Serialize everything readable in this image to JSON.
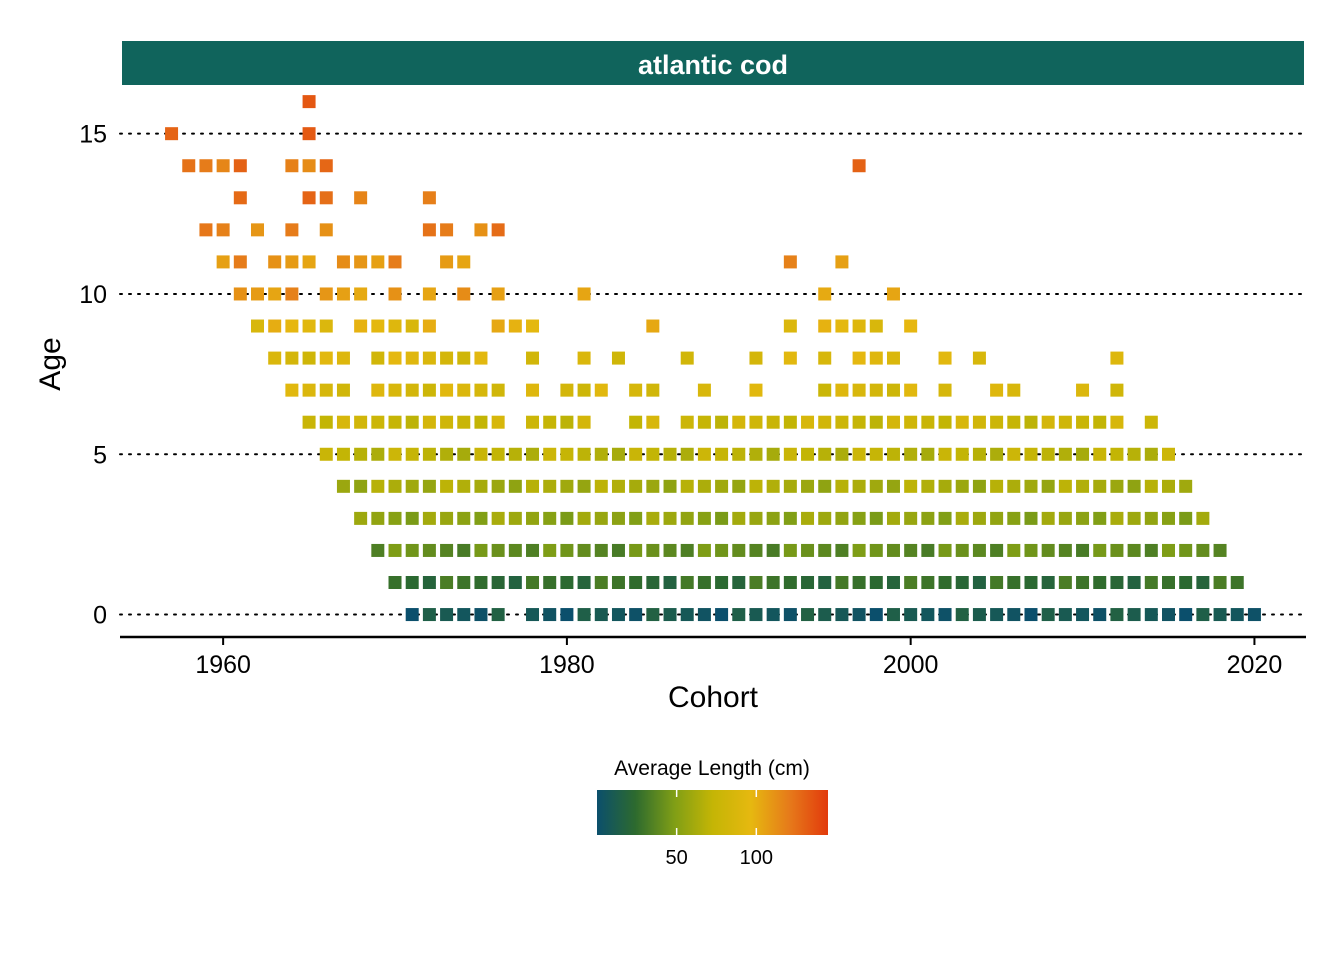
{
  "chart_data": {
    "type": "heatmap",
    "panel_title": "atlantic cod",
    "xlabel": "Cohort",
    "ylabel": "Age",
    "xlim": [
      1954,
      2023
    ],
    "ylim": [
      -0.7,
      16.3
    ],
    "x_ticks": [
      1960,
      1980,
      2000,
      2020
    ],
    "y_ticks": [
      0,
      5,
      10,
      15
    ],
    "grid": "horizontal dotted lines at y ticks",
    "legend": {
      "title": "Average Length (cm)",
      "position": "bottom",
      "range": [
        0,
        145
      ],
      "ticks": [
        50,
        100
      ],
      "colors": [
        "#0b4f6c",
        "#2d6a2e",
        "#7f9e16",
        "#c4b505",
        "#e6b810",
        "#e67a1a",
        "#e23a0c"
      ]
    },
    "colors": {
      "strip": "#10645c"
    },
    "rows": [
      {
        "age": 0,
        "cohorts": [
          [
            1971,
            1976
          ],
          [
            1978,
            2020
          ]
        ],
        "length": 8
      },
      {
        "age": 1,
        "cohorts": [
          [
            1970,
            2019
          ]
        ],
        "length": 25
      },
      {
        "age": 2,
        "cohorts": [
          [
            1969,
            2018
          ]
        ],
        "length": 40
      },
      {
        "age": 3,
        "cohorts": [
          [
            1968,
            2017
          ]
        ],
        "length": 55
      },
      {
        "age": 4,
        "cohorts": [
          [
            1967,
            2016
          ]
        ],
        "length": 62
      },
      {
        "age": 5,
        "cohorts": [
          [
            1966,
            2015
          ]
        ],
        "length": 70
      },
      {
        "age": 6,
        "cohorts": [
          [
            1965,
            1976
          ],
          [
            1978,
            1981
          ],
          [
            1984,
            1985
          ],
          [
            1987,
            2012
          ],
          [
            2014,
            2014
          ]
        ],
        "length": 78
      },
      {
        "age": 7,
        "cohorts": [
          [
            1964,
            1967
          ],
          [
            1969,
            1976
          ],
          [
            1978,
            1978
          ],
          [
            1980,
            1982
          ],
          [
            1984,
            1985
          ],
          [
            1988,
            1988
          ],
          [
            1991,
            1991
          ],
          [
            1995,
            2000
          ],
          [
            2002,
            2002
          ],
          [
            2005,
            2006
          ],
          [
            2010,
            2010
          ],
          [
            2012,
            2012
          ]
        ],
        "length": 85
      },
      {
        "age": 8,
        "cohorts": [
          [
            1963,
            1967
          ],
          [
            1969,
            1975
          ],
          [
            1978,
            1978
          ],
          [
            1981,
            1981
          ],
          [
            1983,
            1983
          ],
          [
            1987,
            1987
          ],
          [
            1991,
            1991
          ],
          [
            1993,
            1993
          ],
          [
            1995,
            1995
          ],
          [
            1997,
            1999
          ],
          [
            2002,
            2002
          ],
          [
            2004,
            2004
          ],
          [
            2012,
            2012
          ]
        ],
        "length": 88
      },
      {
        "age": 9,
        "cohorts": [
          [
            1962,
            1966
          ],
          [
            1968,
            1972
          ],
          [
            1976,
            1978
          ],
          [
            1985,
            1985
          ],
          [
            1993,
            1993
          ],
          [
            1995,
            1998
          ],
          [
            2000,
            2000
          ]
        ],
        "length": 95
      },
      {
        "age": 10,
        "cohorts": [
          [
            1961,
            1964
          ],
          [
            1966,
            1968
          ],
          [
            1970,
            1970
          ],
          [
            1972,
            1972
          ],
          [
            1974,
            1974
          ],
          [
            1976,
            1976
          ],
          [
            1981,
            1981
          ],
          [
            1995,
            1995
          ],
          [
            1999,
            1999
          ]
        ],
        "length": 110
      },
      {
        "age": 11,
        "cohorts": [
          [
            1960,
            1961
          ],
          [
            1963,
            1965
          ],
          [
            1967,
            1970
          ],
          [
            1973,
            1974
          ],
          [
            1993,
            1993
          ],
          [
            1996,
            1996
          ]
        ],
        "length": 112
      },
      {
        "age": 12,
        "cohorts": [
          [
            1959,
            1960
          ],
          [
            1962,
            1962
          ],
          [
            1964,
            1964
          ],
          [
            1966,
            1966
          ],
          [
            1972,
            1973
          ],
          [
            1975,
            1976
          ]
        ],
        "length": 118
      },
      {
        "age": 13,
        "cohorts": [
          [
            1961,
            1961
          ],
          [
            1965,
            1966
          ],
          [
            1968,
            1968
          ],
          [
            1972,
            1972
          ]
        ],
        "length": 125
      },
      {
        "age": 14,
        "cohorts": [
          [
            1958,
            1961
          ],
          [
            1964,
            1966
          ],
          [
            1997,
            1997
          ]
        ],
        "length": 122
      },
      {
        "age": 15,
        "cohorts": [
          [
            1957,
            1957
          ],
          [
            1965,
            1965
          ]
        ],
        "length": 135
      },
      {
        "age": 16,
        "cohorts": [
          [
            1965,
            1965
          ]
        ],
        "length": 130
      }
    ]
  }
}
